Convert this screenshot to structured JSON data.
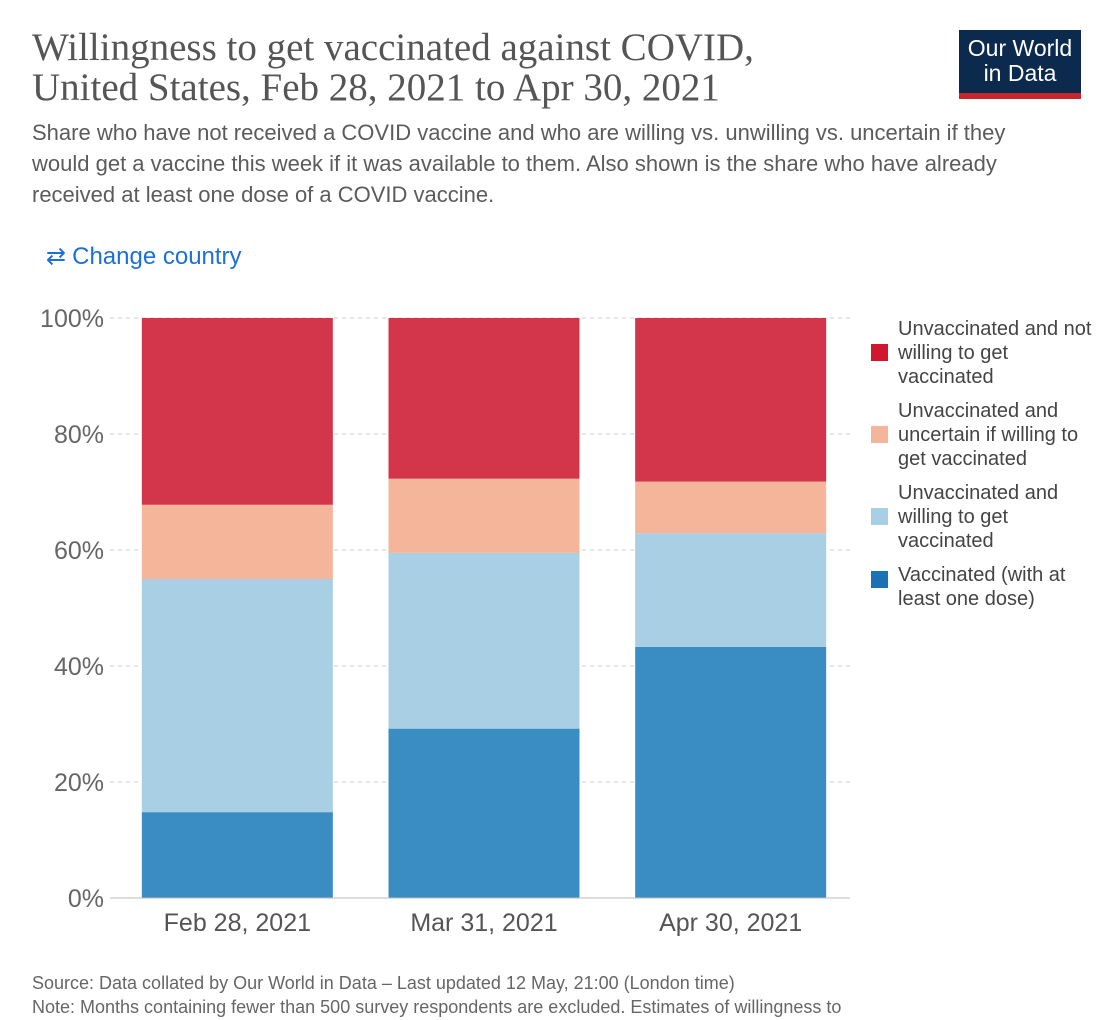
{
  "header": {
    "title_line1": "Willingness to get vaccinated against COVID,",
    "title_line2": "United States, Feb 28, 2021 to Apr 30, 2021",
    "subtitle": "Share who have not received a COVID vaccine and who are willing vs. unwilling vs. uncertain if they would get a vaccine this week if it was available to them. Also shown is the share who have already received at least one dose of a COVID vaccine.",
    "logo_line1": "Our World",
    "logo_line2": "in Data"
  },
  "controls": {
    "change_country_icon": "⇄",
    "change_country_label": "Change country"
  },
  "chart_data": {
    "type": "bar",
    "stacked": true,
    "title": "Willingness to get vaccinated against COVID, United States, Feb 28, 2021 to Apr 30, 2021",
    "categories": [
      "Feb 28, 2021",
      "Mar 31, 2021",
      "Apr 30, 2021"
    ],
    "series": [
      {
        "name": "Vaccinated (with at least one dose)",
        "color": "#3a8dc2",
        "legend_color": "#1a72b5",
        "values": [
          14.8,
          29.2,
          43.3
        ]
      },
      {
        "name": "Unvaccinated and willing to get vaccinated",
        "color": "#a8cfe4",
        "legend_color": "#a8cfe4",
        "values": [
          40.2,
          30.3,
          19.6
        ]
      },
      {
        "name": "Unvaccinated and uncertain if willing to get vaccinated",
        "color": "#f4b59a",
        "legend_color": "#f4b59a",
        "values": [
          12.8,
          12.8,
          8.9
        ]
      },
      {
        "name": "Unvaccinated and not willing to get vaccinated",
        "color": "#d3354b",
        "legend_color": "#d0172f",
        "values": [
          32.2,
          27.7,
          28.2
        ]
      }
    ],
    "yticks": [
      "0%",
      "20%",
      "40%",
      "60%",
      "80%",
      "100%"
    ],
    "ylim": [
      0,
      100
    ],
    "xlabel": "",
    "ylabel": "",
    "grid": true,
    "legend_position": "right"
  },
  "legend": {
    "items": [
      {
        "label": "Unvaccinated and not willing to get vaccinated",
        "color": "#d0172f"
      },
      {
        "label": "Unvaccinated and uncertain if willing to get vaccinated",
        "color": "#f4b59a"
      },
      {
        "label": "Unvaccinated and willing to get vaccinated",
        "color": "#a8cfe4"
      },
      {
        "label": "Vaccinated (with at least one dose)",
        "color": "#1a72b5"
      }
    ]
  },
  "footer": {
    "source": "Source: Data collated by Our World in Data – Last updated 12 May, 21:00 (London time)",
    "note": "Note: Months containing fewer than 500 survey respondents are excluded. Estimates of willingness to"
  }
}
